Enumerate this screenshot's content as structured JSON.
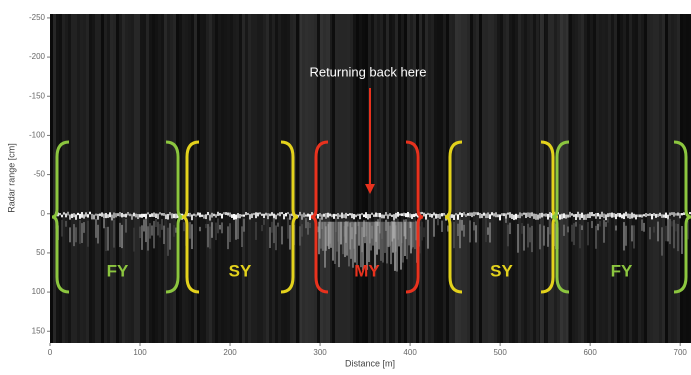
{
  "chart_data": {
    "type": "radargram",
    "xlabel": "Distance [m]",
    "ylabel": "Radar range [cm]",
    "xlim": [
      0,
      712
    ],
    "ylim": [
      -255,
      165
    ],
    "xticks": [
      0,
      100,
      200,
      300,
      400,
      500,
      600,
      700
    ],
    "yticks": [
      -250,
      -200,
      -150,
      -100,
      -50,
      0,
      50,
      100,
      150
    ],
    "annotation": "Returning back here",
    "annotation_color": "#e8321e",
    "regions": [
      {
        "label": "FY",
        "color": "#8cc63f"
      },
      {
        "label": "SY",
        "color": "#e3d21c"
      },
      {
        "label": "MY",
        "color": "#e8321e"
      },
      {
        "label": "SY",
        "color": "#e3d21c"
      },
      {
        "label": "FY",
        "color": "#8cc63f"
      }
    ]
  }
}
